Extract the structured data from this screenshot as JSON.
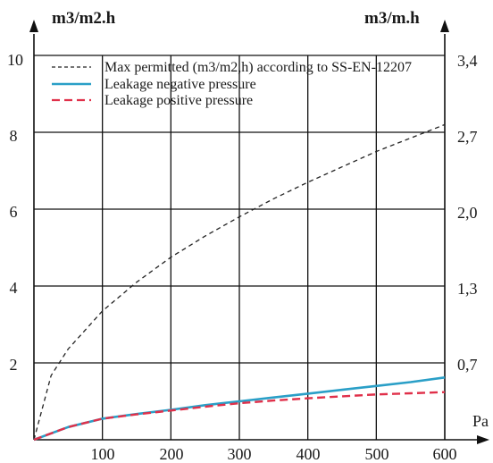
{
  "chart_data": {
    "type": "line",
    "left_axis_label": "m3/m2.h",
    "right_axis_label": "m3/m.h",
    "x_axis_label": "Pa",
    "x_ticks": [
      "100",
      "200",
      "300",
      "400",
      "500",
      "600"
    ],
    "y_left_ticks": [
      "2",
      "4",
      "6",
      "8",
      "10"
    ],
    "y_right_ticks": [
      "0,7",
      "1,3",
      "2,0",
      "2,7",
      "3,4"
    ],
    "xlim": [
      0,
      600
    ],
    "ylim": [
      0,
      10
    ],
    "grid": true,
    "legend_position": "top",
    "series": [
      {
        "name": "Max permitted (m3/m2,h) according to SS-EN-12207",
        "color": "#222222",
        "style": "dashed-fine",
        "x": [
          0,
          25,
          50,
          100,
          150,
          200,
          250,
          300,
          350,
          400,
          450,
          500,
          550,
          600
        ],
        "y": [
          0,
          1.67,
          2.36,
          3.35,
          4.1,
          4.75,
          5.3,
          5.8,
          6.27,
          6.7,
          7.1,
          7.5,
          7.85,
          8.2
        ]
      },
      {
        "name": "Leakage negative pressure",
        "color": "#2a9fc7",
        "style": "solid",
        "x": [
          0,
          50,
          100,
          150,
          200,
          250,
          300,
          350,
          400,
          450,
          500,
          550,
          600
        ],
        "y": [
          0,
          0.33,
          0.55,
          0.67,
          0.78,
          0.9,
          1.0,
          1.1,
          1.2,
          1.3,
          1.4,
          1.5,
          1.62
        ]
      },
      {
        "name": "Leakage positive pressure",
        "color": "#e0304a",
        "style": "dashed",
        "x": [
          0,
          50,
          100,
          150,
          200,
          250,
          300,
          350,
          400,
          450,
          500,
          550,
          600
        ],
        "y": [
          0,
          0.33,
          0.55,
          0.66,
          0.76,
          0.86,
          0.95,
          1.02,
          1.08,
          1.13,
          1.18,
          1.21,
          1.24
        ]
      }
    ]
  }
}
